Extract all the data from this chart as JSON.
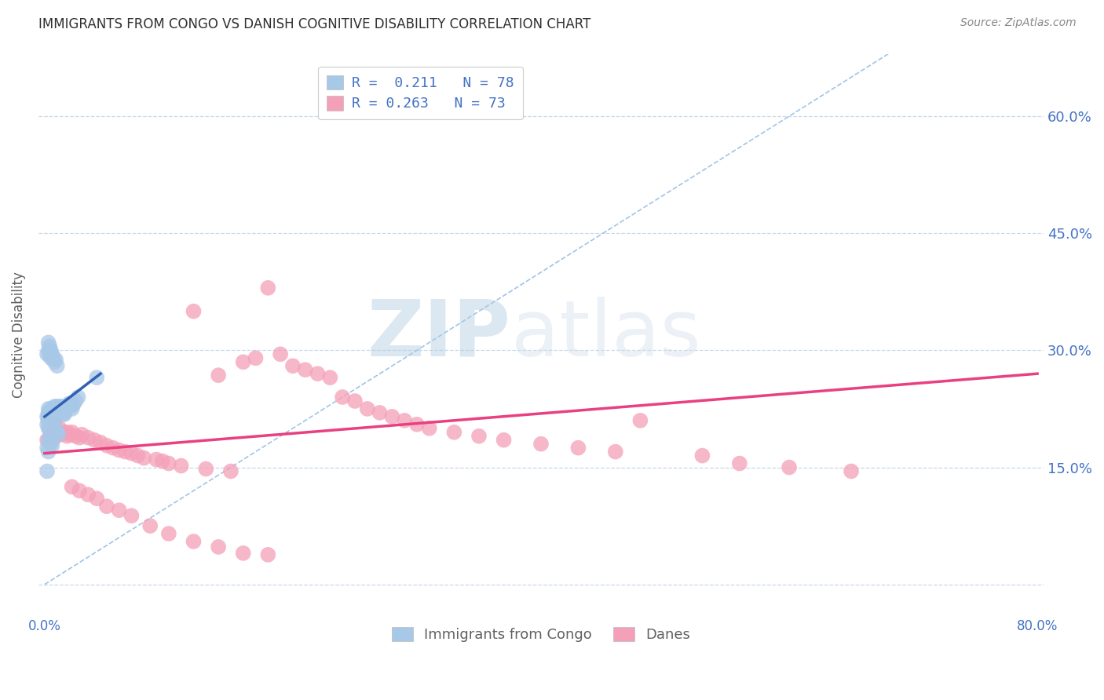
{
  "title": "IMMIGRANTS FROM CONGO VS DANISH COGNITIVE DISABILITY CORRELATION CHART",
  "source": "Source: ZipAtlas.com",
  "ylabel": "Cognitive Disability",
  "xlim": [
    -0.005,
    0.805
  ],
  "ylim": [
    -0.04,
    0.68
  ],
  "xticks": [
    0.0,
    0.1,
    0.2,
    0.3,
    0.4,
    0.5,
    0.6,
    0.7,
    0.8
  ],
  "xtick_labels": [
    "0.0%",
    "",
    "",
    "",
    "",
    "",
    "",
    "",
    "80.0%"
  ],
  "yticks": [
    0.0,
    0.15,
    0.3,
    0.45,
    0.6
  ],
  "ytick_labels_right": [
    "",
    "15.0%",
    "30.0%",
    "45.0%",
    "60.0%"
  ],
  "grid_color": "#c8d8e8",
  "background_color": "#ffffff",
  "watermark_zip": "ZIP",
  "watermark_atlas": "atlas",
  "legend_line1": "R =  0.211   N = 78",
  "legend_line2": "R = 0.263   N = 73",
  "legend_label1": "Immigrants from Congo",
  "legend_label2": "Danes",
  "blue_color": "#a8c8e8",
  "pink_color": "#f4a0b8",
  "blue_line_color": "#3060b0",
  "pink_line_color": "#e84080",
  "ref_line_color": "#a0c4e8",
  "title_color": "#303030",
  "axis_label_color": "#606060",
  "tick_color": "#4472C4",
  "blue_scatter_x": [
    0.002,
    0.003,
    0.003,
    0.003,
    0.003,
    0.004,
    0.004,
    0.004,
    0.004,
    0.005,
    0.005,
    0.005,
    0.005,
    0.006,
    0.006,
    0.006,
    0.007,
    0.007,
    0.007,
    0.008,
    0.008,
    0.008,
    0.009,
    0.009,
    0.01,
    0.01,
    0.01,
    0.011,
    0.011,
    0.012,
    0.012,
    0.013,
    0.013,
    0.014,
    0.014,
    0.015,
    0.015,
    0.016,
    0.016,
    0.017,
    0.018,
    0.019,
    0.02,
    0.021,
    0.022,
    0.023,
    0.025,
    0.027,
    0.002,
    0.003,
    0.003,
    0.004,
    0.004,
    0.005,
    0.005,
    0.006,
    0.007,
    0.008,
    0.009,
    0.01,
    0.002,
    0.003,
    0.004,
    0.005,
    0.006,
    0.007,
    0.008,
    0.009,
    0.01,
    0.011,
    0.003,
    0.004,
    0.005,
    0.006,
    0.002,
    0.003,
    0.042,
    0.002
  ],
  "blue_scatter_y": [
    0.215,
    0.22,
    0.225,
    0.215,
    0.21,
    0.222,
    0.218,
    0.212,
    0.208,
    0.225,
    0.22,
    0.215,
    0.21,
    0.222,
    0.218,
    0.215,
    0.225,
    0.22,
    0.215,
    0.228,
    0.222,
    0.218,
    0.225,
    0.22,
    0.228,
    0.222,
    0.218,
    0.225,
    0.22,
    0.228,
    0.222,
    0.225,
    0.22,
    0.228,
    0.222,
    0.225,
    0.218,
    0.222,
    0.218,
    0.225,
    0.228,
    0.23,
    0.232,
    0.228,
    0.225,
    0.23,
    0.235,
    0.24,
    0.295,
    0.3,
    0.31,
    0.295,
    0.305,
    0.29,
    0.3,
    0.295,
    0.29,
    0.285,
    0.288,
    0.28,
    0.205,
    0.2,
    0.198,
    0.195,
    0.198,
    0.2,
    0.202,
    0.198,
    0.195,
    0.192,
    0.185,
    0.182,
    0.18,
    0.178,
    0.175,
    0.17,
    0.265,
    0.145
  ],
  "pink_scatter_x": [
    0.002,
    0.005,
    0.008,
    0.01,
    0.012,
    0.015,
    0.018,
    0.02,
    0.022,
    0.025,
    0.028,
    0.03,
    0.035,
    0.04,
    0.045,
    0.05,
    0.055,
    0.06,
    0.065,
    0.07,
    0.075,
    0.08,
    0.09,
    0.095,
    0.1,
    0.11,
    0.12,
    0.13,
    0.14,
    0.15,
    0.16,
    0.17,
    0.18,
    0.19,
    0.2,
    0.21,
    0.22,
    0.23,
    0.24,
    0.25,
    0.26,
    0.27,
    0.28,
    0.29,
    0.3,
    0.31,
    0.33,
    0.35,
    0.37,
    0.4,
    0.43,
    0.46,
    0.48,
    0.53,
    0.56,
    0.6,
    0.65,
    0.008,
    0.012,
    0.018,
    0.022,
    0.028,
    0.035,
    0.042,
    0.05,
    0.06,
    0.07,
    0.085,
    0.1,
    0.12,
    0.14,
    0.16,
    0.18
  ],
  "pink_scatter_y": [
    0.185,
    0.19,
    0.188,
    0.195,
    0.192,
    0.195,
    0.19,
    0.192,
    0.195,
    0.19,
    0.188,
    0.192,
    0.188,
    0.185,
    0.182,
    0.178,
    0.175,
    0.172,
    0.17,
    0.168,
    0.165,
    0.162,
    0.16,
    0.158,
    0.155,
    0.152,
    0.35,
    0.148,
    0.268,
    0.145,
    0.285,
    0.29,
    0.38,
    0.295,
    0.28,
    0.275,
    0.27,
    0.265,
    0.24,
    0.235,
    0.225,
    0.22,
    0.215,
    0.21,
    0.205,
    0.2,
    0.195,
    0.19,
    0.185,
    0.18,
    0.175,
    0.17,
    0.21,
    0.165,
    0.155,
    0.15,
    0.145,
    0.205,
    0.2,
    0.195,
    0.125,
    0.12,
    0.115,
    0.11,
    0.1,
    0.095,
    0.088,
    0.075,
    0.065,
    0.055,
    0.048,
    0.04,
    0.038
  ],
  "ref_line": {
    "x_start": 0.0,
    "x_end": 0.68,
    "y_start": 0.0,
    "y_end": 0.68
  },
  "blue_trend": {
    "x_start": 0.0,
    "x_end": 0.045,
    "y_start": 0.215,
    "y_end": 0.27
  },
  "pink_trend": {
    "x_start": 0.0,
    "x_end": 0.8,
    "y_start": 0.168,
    "y_end": 0.27
  }
}
